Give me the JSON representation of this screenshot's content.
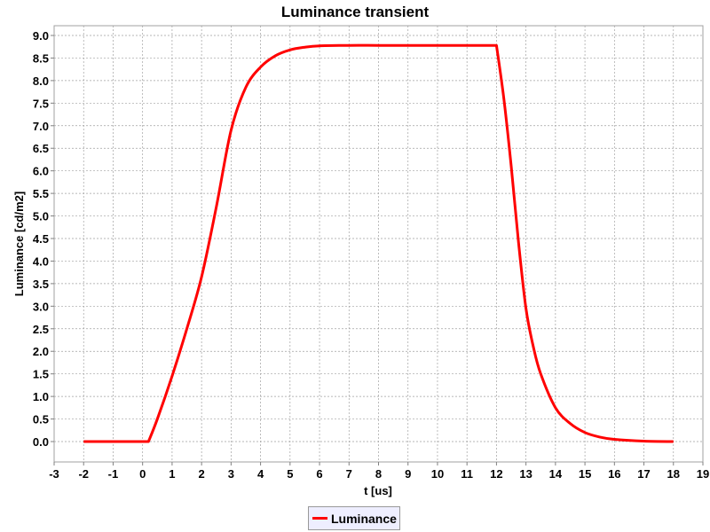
{
  "chart_data": {
    "type": "line",
    "title": "Luminance transient",
    "xlabel": "t [us]",
    "ylabel": "Luminance [cd/m2]",
    "xlim": [
      -3,
      19
    ],
    "ylim": [
      -0.45,
      9.25
    ],
    "x_ticks": [
      "-3",
      "-2",
      "-1",
      "0",
      "1",
      "2",
      "3",
      "4",
      "5",
      "6",
      "7",
      "8",
      "9",
      "10",
      "11",
      "12",
      "13",
      "14",
      "15",
      "16",
      "17",
      "18",
      "19"
    ],
    "y_ticks": [
      "0.0",
      "0.5",
      "1.0",
      "1.5",
      "2.0",
      "2.5",
      "3.0",
      "3.5",
      "4.0",
      "4.5",
      "5.0",
      "5.5",
      "6.0",
      "6.5",
      "7.0",
      "7.5",
      "8.0",
      "8.5",
      "9.0"
    ],
    "grid": true,
    "legend_position": "bottom-center",
    "series": [
      {
        "name": "Luminance",
        "color": "#ff0000",
        "x": [
          -2,
          0.2,
          0.5,
          1,
          1.5,
          2,
          2.5,
          3,
          3.5,
          4,
          4.5,
          5,
          5.5,
          6,
          7,
          8,
          9,
          10,
          11,
          12,
          12.25,
          12.5,
          12.75,
          13,
          13.25,
          13.5,
          14,
          14.5,
          15,
          15.5,
          16,
          17,
          18
        ],
        "y": [
          0,
          0,
          0.5,
          1.45,
          2.5,
          3.65,
          5.2,
          6.9,
          7.85,
          8.3,
          8.55,
          8.68,
          8.74,
          8.77,
          8.78,
          8.78,
          8.78,
          8.78,
          8.78,
          8.78,
          7.6,
          6.1,
          4.4,
          2.95,
          2.1,
          1.5,
          0.75,
          0.4,
          0.2,
          0.1,
          0.05,
          0.01,
          0.0
        ]
      }
    ]
  },
  "legend": {
    "items": [
      {
        "label": "Luminance",
        "color": "#ff0000"
      }
    ]
  }
}
